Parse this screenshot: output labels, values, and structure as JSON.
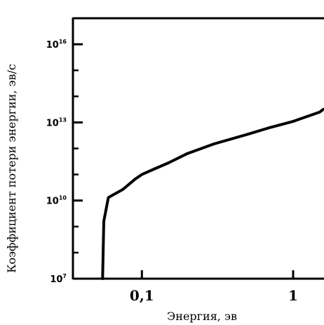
{
  "chart_data": {
    "type": "line",
    "title": "",
    "xlabel": "Энергия, эв",
    "ylabel": "Коэффициент потери энергии, эв/с",
    "x_scale": "log",
    "y_scale": "log",
    "xlim": [
      0.035,
      1.6
    ],
    "ylim": [
      10000000.0,
      1e+17
    ],
    "x_ticks": [
      {
        "value": 0.1,
        "label": "0,1"
      },
      {
        "value": 1,
        "label": "1"
      }
    ],
    "y_ticks": [
      {
        "value": 10000000.0,
        "base": "10",
        "exp": "7"
      },
      {
        "value": 10000000000.0,
        "base": "10",
        "exp": "10"
      },
      {
        "value": 10000000000000.0,
        "base": "10",
        "exp": "13"
      },
      {
        "value": 1e+16,
        "base": "10",
        "exp": "16"
      }
    ],
    "grid": false,
    "legend": "none",
    "line_color": "#000000",
    "series": [
      {
        "x": [
          0.055,
          0.056,
          0.06,
          0.065,
          0.075,
          0.09,
          0.1,
          0.12,
          0.15,
          0.2,
          0.3,
          0.5,
          0.7,
          1.0,
          1.5,
          1.6
        ],
        "y": [
          10000000.0,
          1600000000.0,
          13000000000.0,
          17000000000.0,
          27000000000.0,
          66000000000.0,
          100000000000.0,
          160000000000.0,
          280000000000.0,
          640000000000.0,
          1500000000000.0,
          3500000000000.0,
          6300000000000.0,
          11000000000000.0,
          25000000000000.0,
          32000000000000.0
        ]
      }
    ]
  }
}
